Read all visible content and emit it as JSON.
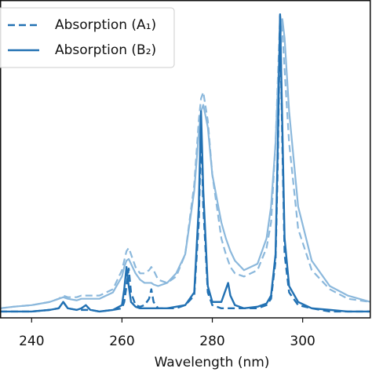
{
  "chart_data": {
    "type": "line",
    "xlabel": "Wavelength (nm)",
    "xlim": [
      233,
      315
    ],
    "xticks": [
      240,
      260,
      280,
      300
    ],
    "ylim": [
      0,
      1
    ],
    "legend": "upper left",
    "x": [
      233,
      236,
      240,
      244,
      246,
      247,
      248,
      250,
      251,
      252,
      253,
      255,
      258,
      260,
      260.5,
      261,
      261.5,
      262,
      263,
      264,
      265,
      266,
      266.5,
      267,
      268,
      270,
      272,
      274,
      276,
      277,
      277.5,
      278,
      279,
      280,
      282,
      283,
      283.5,
      284,
      285,
      287,
      290,
      292,
      293,
      294,
      294.5,
      295,
      295.5,
      296,
      297,
      299,
      302,
      306,
      310,
      315
    ],
    "series": [
      {
        "name": "Absorption (A₁)",
        "color": "#2271b3",
        "linestyle": "dashed",
        "values": [
          0.02,
          0.02,
          0.02,
          0.025,
          0.03,
          0.05,
          0.03,
          0.025,
          0.025,
          0.025,
          0.025,
          0.02,
          0.025,
          0.03,
          0.05,
          0.1,
          0.155,
          0.08,
          0.04,
          0.035,
          0.04,
          0.06,
          0.09,
          0.05,
          0.03,
          0.03,
          0.03,
          0.04,
          0.07,
          0.3,
          0.6,
          0.35,
          0.08,
          0.04,
          0.03,
          0.03,
          0.03,
          0.03,
          0.03,
          0.03,
          0.03,
          0.04,
          0.06,
          0.18,
          0.5,
          0.95,
          0.55,
          0.2,
          0.08,
          0.04,
          0.03,
          0.02,
          0.02,
          0.02
        ]
      },
      {
        "name": "Absorption (B₂)",
        "color": "#2271b3",
        "linestyle": "solid",
        "values": [
          0.02,
          0.02,
          0.02,
          0.025,
          0.03,
          0.05,
          0.03,
          0.025,
          0.03,
          0.04,
          0.025,
          0.02,
          0.025,
          0.04,
          0.09,
          0.16,
          0.1,
          0.05,
          0.035,
          0.03,
          0.03,
          0.03,
          0.03,
          0.03,
          0.03,
          0.03,
          0.035,
          0.04,
          0.08,
          0.35,
          0.65,
          0.4,
          0.1,
          0.05,
          0.05,
          0.09,
          0.11,
          0.07,
          0.04,
          0.03,
          0.035,
          0.045,
          0.07,
          0.2,
          0.55,
          0.955,
          0.6,
          0.25,
          0.1,
          0.05,
          0.03,
          0.025,
          0.02,
          0.02
        ]
      }
    ],
    "broad_series": [
      {
        "color": "#8bb8dc",
        "linestyle": "dashed",
        "values": [
          0.03,
          0.035,
          0.04,
          0.05,
          0.06,
          0.07,
          0.065,
          0.065,
          0.07,
          0.07,
          0.07,
          0.07,
          0.09,
          0.15,
          0.18,
          0.21,
          0.22,
          0.2,
          0.16,
          0.14,
          0.14,
          0.15,
          0.16,
          0.15,
          0.12,
          0.11,
          0.13,
          0.2,
          0.42,
          0.62,
          0.69,
          0.71,
          0.62,
          0.45,
          0.25,
          0.2,
          0.18,
          0.16,
          0.14,
          0.13,
          0.15,
          0.22,
          0.3,
          0.55,
          0.75,
          0.95,
          0.9,
          0.78,
          0.55,
          0.28,
          0.15,
          0.09,
          0.06,
          0.05
        ]
      },
      {
        "color": "#8bb8dc",
        "linestyle": "solid",
        "values": [
          0.03,
          0.035,
          0.04,
          0.05,
          0.06,
          0.065,
          0.06,
          0.055,
          0.06,
          0.06,
          0.06,
          0.06,
          0.08,
          0.13,
          0.16,
          0.18,
          0.185,
          0.17,
          0.14,
          0.12,
          0.11,
          0.11,
          0.11,
          0.105,
          0.1,
          0.11,
          0.14,
          0.2,
          0.4,
          0.58,
          0.65,
          0.67,
          0.6,
          0.45,
          0.3,
          0.25,
          0.23,
          0.21,
          0.18,
          0.15,
          0.17,
          0.25,
          0.35,
          0.55,
          0.72,
          0.88,
          0.94,
          0.88,
          0.65,
          0.35,
          0.18,
          0.1,
          0.07,
          0.05
        ]
      }
    ]
  }
}
